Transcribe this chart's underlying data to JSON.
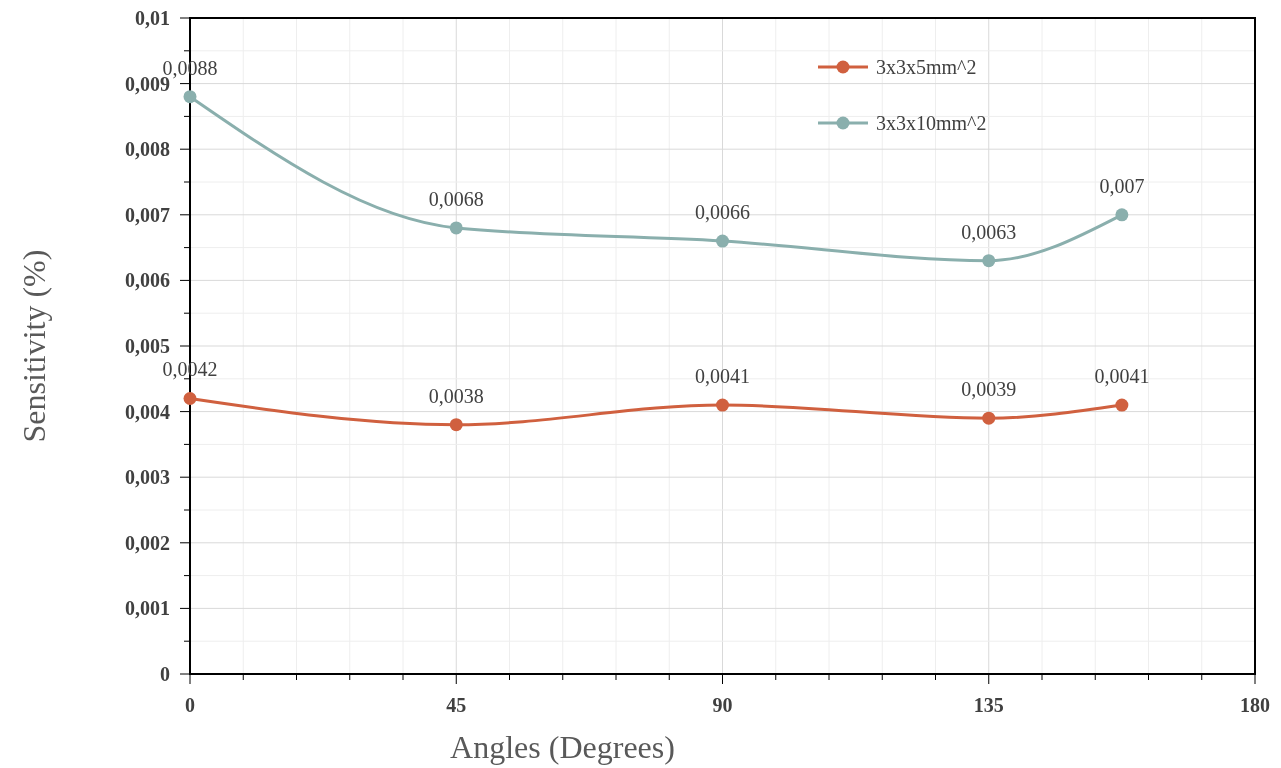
{
  "chart_data": {
    "type": "line",
    "xlabel": "Angles (Degrees)",
    "ylabel": "Sensitivity (%)",
    "xlim": [
      0,
      180
    ],
    "xticks": [
      0,
      {
        "value": 9,
        "label": null
      },
      {
        "value": 18,
        "label": null
      },
      {
        "value": 27,
        "label": null
      },
      {
        "value": 36,
        "label": null
      },
      45,
      {
        "value": 54,
        "label": null
      },
      {
        "value": 63,
        "label": null
      },
      {
        "value": 72,
        "label": null
      },
      {
        "value": 81,
        "label": null
      },
      90,
      {
        "value": 99,
        "label": null
      },
      {
        "value": 108,
        "label": null
      },
      {
        "value": 117,
        "label": null
      },
      {
        "value": 126,
        "label": null
      },
      135,
      {
        "value": 144,
        "label": null
      },
      {
        "value": 153,
        "label": null
      },
      {
        "value": 162,
        "label": null
      },
      {
        "value": 171,
        "label": null
      },
      180
    ],
    "ylim": [
      0,
      0.01
    ],
    "yticks": [
      0,
      {
        "value": 0.0005,
        "label": null
      },
      {
        "value": 0.001,
        "label": "0,001"
      },
      {
        "value": 0.0015,
        "label": null
      },
      {
        "value": 0.002,
        "label": "0,002"
      },
      {
        "value": 0.0025,
        "label": null
      },
      {
        "value": 0.003,
        "label": "0,003"
      },
      {
        "value": 0.0035,
        "label": null
      },
      {
        "value": 0.004,
        "label": "0,004"
      },
      {
        "value": 0.0045,
        "label": null
      },
      {
        "value": 0.005,
        "label": "0,005"
      },
      {
        "value": 0.0055,
        "label": null
      },
      {
        "value": 0.006,
        "label": "0,006"
      },
      {
        "value": 0.0065,
        "label": null
      },
      {
        "value": 0.007,
        "label": "0,007"
      },
      {
        "value": 0.0075,
        "label": null
      },
      {
        "value": 0.008,
        "label": "0,008"
      },
      {
        "value": 0.0085,
        "label": null
      },
      {
        "value": 0.009,
        "label": "0,009"
      },
      {
        "value": 0.0095,
        "label": null
      },
      {
        "value": 0.01,
        "label": "0,01"
      }
    ],
    "x": [
      0,
      45,
      90,
      135,
      157.5
    ],
    "grid": true,
    "legend": "top right",
    "marker": "circle",
    "line_style": "solid",
    "series": [
      {
        "name": "3x3x5mm^2",
        "color": "#d0603f",
        "values": [
          0.0042,
          0.0038,
          0.0041,
          0.0039,
          0.0041
        ],
        "value_labels": [
          "0,0042",
          "0,0038",
          "0,0041",
          "0,0039",
          "0,0041"
        ]
      },
      {
        "name": "3x3x10mm^2",
        "color": "#8aafad",
        "values": [
          0.0088,
          0.0068,
          0.0066,
          0.0063,
          0.007
        ],
        "value_labels": [
          "0,0088",
          "0,0068",
          "0,0066",
          "0,0063",
          "0,007"
        ]
      }
    ]
  }
}
